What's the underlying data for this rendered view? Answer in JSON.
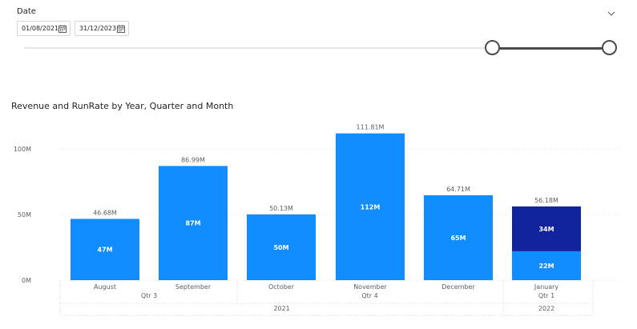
{
  "slicer": {
    "title": "Date",
    "start_date": "01/08/2021",
    "end_date": "31/12/2023",
    "range_fraction": [
      0.8,
      1.0
    ]
  },
  "colors": {
    "revenue": "#118dff",
    "runrate": "#12239e",
    "slider": "#4b4b4b"
  },
  "icons": {
    "collapse": "chevron-down-icon",
    "calendar": "calendar-icon"
  },
  "chart_data": {
    "type": "bar",
    "stacked": true,
    "title": "Revenue and RunRate by Year, Quarter and Month",
    "xlabel": "",
    "ylabel": "",
    "ylim": [
      0,
      120000000
    ],
    "yticks": [
      0,
      50000000,
      100000000
    ],
    "ytick_labels": [
      "0M",
      "50M",
      "100M"
    ],
    "grid": true,
    "legend": "none",
    "categories": [
      "August",
      "September",
      "October",
      "November",
      "December",
      "January"
    ],
    "quarters": [
      {
        "label": "Qtr 3",
        "span": [
          0,
          1
        ]
      },
      {
        "label": "Qtr 4",
        "span": [
          2,
          4
        ]
      },
      {
        "label": "Qtr 1",
        "span": [
          5,
          5
        ]
      }
    ],
    "years": [
      {
        "label": "2021",
        "span": [
          0,
          4
        ]
      },
      {
        "label": "2022",
        "span": [
          5,
          5
        ]
      }
    ],
    "series": [
      {
        "values": [
          46680000,
          86990000,
          50130000,
          111810000,
          64710000,
          22000000
        ],
        "labels": [
          "47M",
          "87M",
          "50M",
          "112M",
          "65M",
          "22M"
        ]
      },
      {
        "values": [
          0,
          0,
          0,
          0,
          0,
          34180000
        ],
        "labels": [
          "",
          "",
          "",
          "",
          "",
          "34M"
        ]
      }
    ],
    "total_labels": [
      "46.68M",
      "86.99M",
      "50.13M",
      "111.81M",
      "64.71M",
      "56.18M"
    ]
  }
}
